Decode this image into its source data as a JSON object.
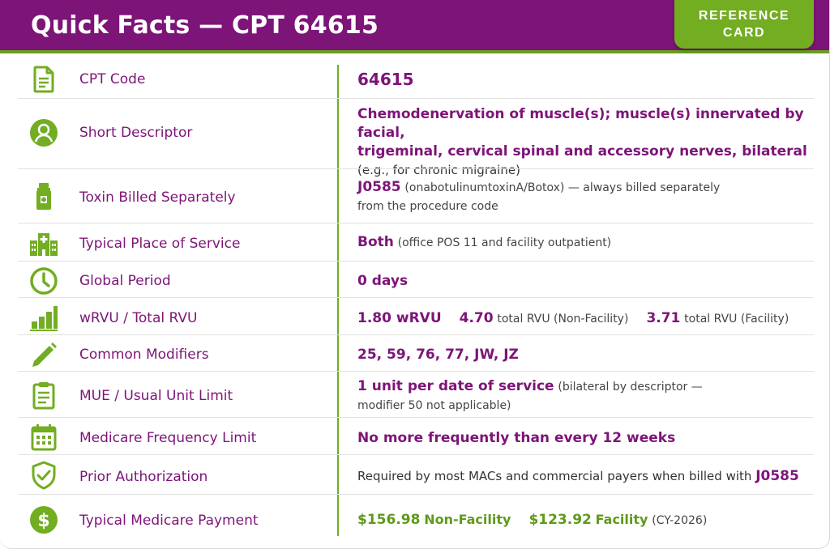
{
  "header": {
    "title": "Quick Facts — CPT 64615",
    "badge_line1": "REFERENCE",
    "badge_line2": "CARD"
  },
  "colors": {
    "purple": "#7d1478",
    "green": "#72ad22",
    "text": "#333333"
  },
  "rows": [
    {
      "icon": "document-icon",
      "label": "CPT Code",
      "value": "64615"
    },
    {
      "icon": "person-icon",
      "label": "Short Descriptor",
      "value_line1": "Chemodenervation of muscle(s); muscle(s) innervated by facial,",
      "value_line2": "trigeminal, cervical spinal and accessory nerves, bilateral",
      "value_line3": "(e.g., for chronic migraine)"
    },
    {
      "icon": "vial-icon",
      "label": "Toxin Billed Separately",
      "code": "J0585",
      "value_line1": "(onabotulinumtoxinA/Botox) — always billed separately",
      "value_line2": "from the procedure code"
    },
    {
      "icon": "hospital-icon",
      "label": "Typical Place of Service",
      "value_bold": "Both",
      "value_rest": "(office POS 11 and facility outpatient)"
    },
    {
      "icon": "clock-icon",
      "label": "Global Period",
      "value": "0 days"
    },
    {
      "icon": "bar-chart-icon",
      "label": "wRVU / Total RVU",
      "wrvu": "1.80 wRVU",
      "nf_value": "4.70",
      "nf_label": "total RVU (Non-Facility)",
      "f_value": "3.71",
      "f_label": "total RVU (Facility)"
    },
    {
      "icon": "pencil-icon",
      "label": "Common Modifiers",
      "value": "25, 59, 76, 77, JW, JZ"
    },
    {
      "icon": "clipboard-icon",
      "label": "MUE / Usual Unit Limit",
      "value_bold": "1 unit per date of service",
      "value_rest": "(bilateral by descriptor —",
      "value_line2": "modifier 50 not applicable)"
    },
    {
      "icon": "calendar-icon",
      "label": "Medicare Frequency Limit",
      "value": "No more frequently than every 12 weeks"
    },
    {
      "icon": "shield-check-icon",
      "label": "Prior Authorization",
      "value_rest": "Required by most MACs and commercial payers when billed with",
      "value_bold": "J0585"
    },
    {
      "icon": "dollar-icon",
      "label": "Typical Medicare Payment",
      "nf_amount": "$156.98",
      "nf_label": "Non-Facility",
      "f_amount": "$123.92",
      "f_label": "Facility",
      "note": "(CY-2026)"
    }
  ]
}
